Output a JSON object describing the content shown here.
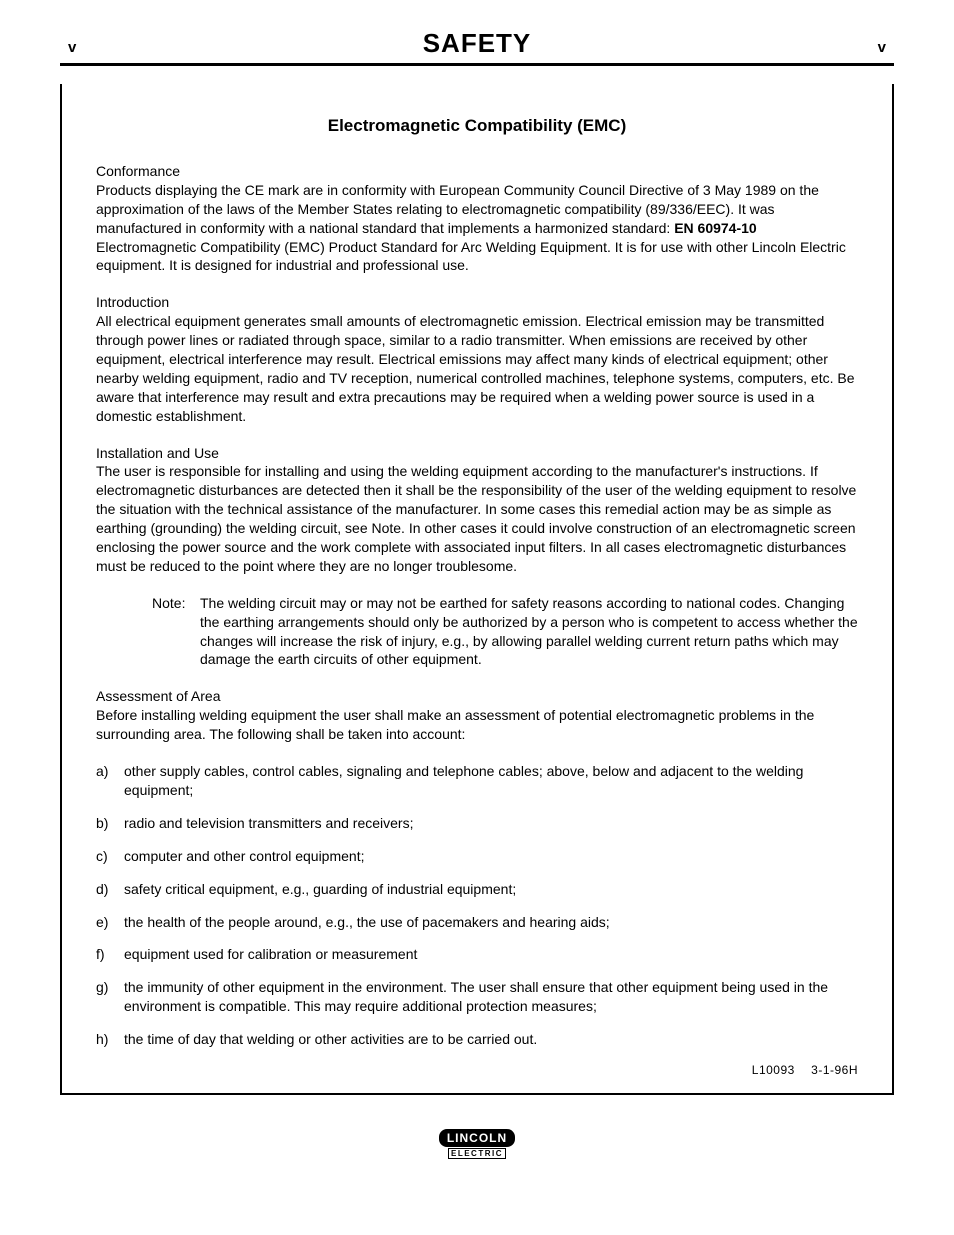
{
  "header": {
    "left": "v",
    "title": "SAFETY",
    "right": "v"
  },
  "subtitle": "Electromagnetic Compatibility (EMC)",
  "sections": {
    "conformance": {
      "head": "Conformance",
      "body_pre": "Products displaying the CE mark are in conformity with European Community Council Directive of 3 May 1989 on the approximation of the laws of the Member States relating to electromagnetic compatibility (89/336/EEC). It was manufactured in conformity with a national standard that implements a harmonized standard: ",
      "standard": "EN 60974-10",
      "body_post": " Electromagnetic Compatibility (EMC) Product Standard for Arc Welding Equipment. It is for use with other Lincoln Electric equipment. It is designed for industrial and professional use."
    },
    "introduction": {
      "head": "Introduction",
      "body": "All electrical equipment generates small amounts of electromagnetic emission. Electrical emission may be transmitted through power lines or radiated through space, similar to a radio transmitter. When emissions are received by other equipment, electrical interference may result. Electrical emissions may affect many kinds of electrical equipment; other nearby welding equipment, radio and TV reception, numerical controlled machines, telephone systems, computers, etc. Be aware that interference may result and extra precautions may be required when a welding power source is used in a domestic establishment."
    },
    "installation": {
      "head": "Installation and Use",
      "body": "The user is responsible for installing and using the welding equipment according to the manufacturer's instructions. If electromagnetic disturbances are detected then it shall be the responsibility of the user of the welding equipment to resolve the situation with the technical assistance of the manufacturer. In some cases this remedial action may be as simple as earthing (grounding) the welding circuit, see Note. In other cases it could involve construction of an electromagnetic screen enclosing the power source and the work complete with associated input filters. In all cases electromagnetic disturbances must be reduced to the point where they are no longer troublesome."
    },
    "note": {
      "label": "Note:",
      "body": "The welding circuit may or may not be earthed for safety reasons according to national codes. Changing the earthing arrangements should only be authorized by a person who is competent to access whether the changes will increase the risk of injury, e.g., by allowing parallel welding current return paths which may damage the earth circuits of other equipment."
    },
    "assessment": {
      "head": "Assessment of Area",
      "body": "Before installing welding equipment the user shall make an assessment of potential electromagnetic problems in the surrounding area. The following shall be taken into account:"
    }
  },
  "list": [
    {
      "m": "a)",
      "t": "other supply cables, control cables, signaling and telephone cables; above, below and adjacent to the welding equipment;"
    },
    {
      "m": "b)",
      "t": "radio and television transmitters and receivers;"
    },
    {
      "m": "c)",
      "t": "computer and other control equipment;"
    },
    {
      "m": "d)",
      "t": "safety critical equipment, e.g., guarding of industrial equipment;"
    },
    {
      "m": "e)",
      "t": "the health of the people around, e.g., the use of pacemakers and hearing aids;"
    },
    {
      "m": "f)",
      "t": "equipment used for calibration or measurement"
    },
    {
      "m": "g)",
      "t": "the immunity of other equipment in the environment. The user shall ensure that other equipment being used in the environment is compatible. This may require additional protection measures;"
    },
    {
      "m": "h)",
      "t": "the time of day that welding or other activities are to be carried out."
    }
  ],
  "docref": "L10093  3-1-96H",
  "logo": {
    "top": "LINCOLN",
    "bottom": "ELECTRIC"
  }
}
